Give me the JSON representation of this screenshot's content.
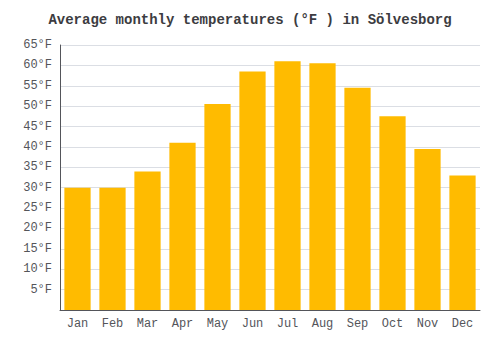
{
  "chart_data": {
    "type": "bar",
    "title": "Average monthly temperatures (°F ) in Sölvesborg",
    "categories": [
      "Jan",
      "Feb",
      "Mar",
      "Apr",
      "May",
      "Jun",
      "Jul",
      "Aug",
      "Sep",
      "Oct",
      "Nov",
      "Dec"
    ],
    "values": [
      30,
      30,
      34,
      41,
      50.5,
      58.5,
      61,
      60.5,
      54.5,
      47.5,
      39.5,
      33
    ],
    "color": "#FFBB00",
    "ylim": [
      0,
      65
    ],
    "yticks": [
      {
        "value": 5,
        "label": "5°F"
      },
      {
        "value": 10,
        "label": "10°F"
      },
      {
        "value": 15,
        "label": "15°F"
      },
      {
        "value": 20,
        "label": "20°F"
      },
      {
        "value": 25,
        "label": "25°F"
      },
      {
        "value": 30,
        "label": "30°F"
      },
      {
        "value": 35,
        "label": "35°F"
      },
      {
        "value": 40,
        "label": "40°F"
      },
      {
        "value": 45,
        "label": "45°F"
      },
      {
        "value": 50,
        "label": "50°F"
      },
      {
        "value": 55,
        "label": "55°F"
      },
      {
        "value": 60,
        "label": "60°F"
      },
      {
        "value": 65,
        "label": "65°F"
      }
    ],
    "grid": true
  }
}
